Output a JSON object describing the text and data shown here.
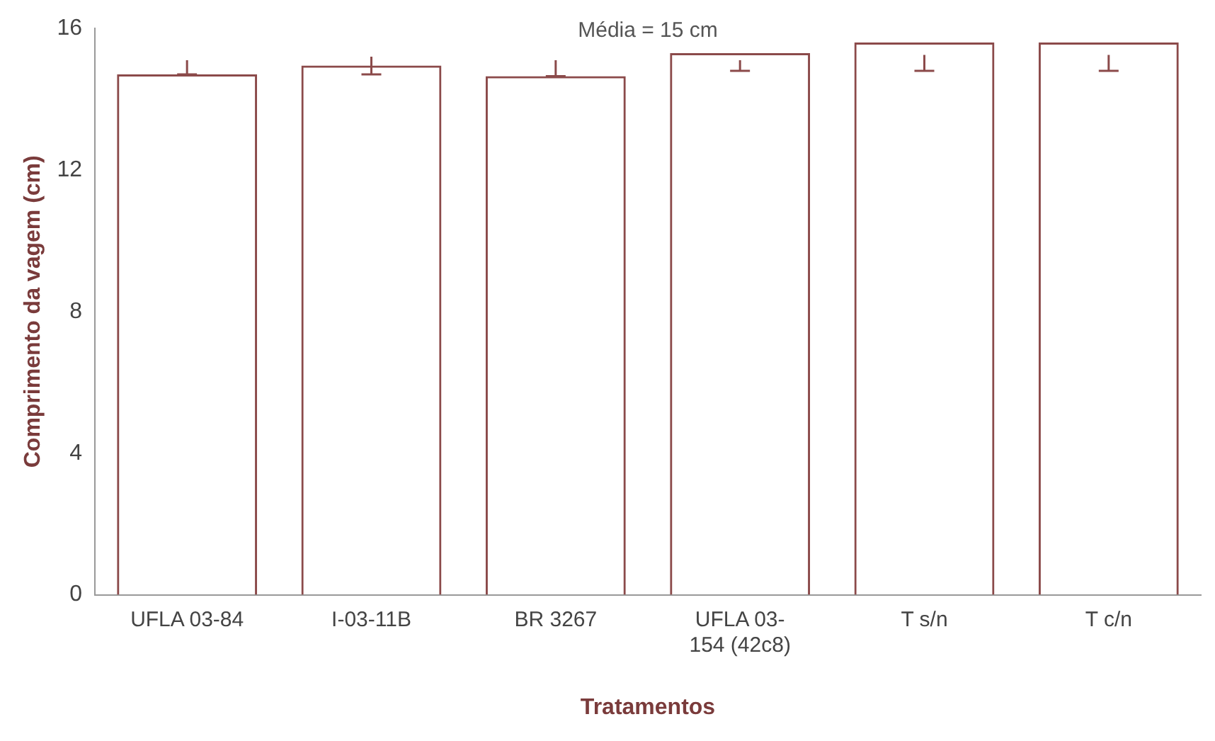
{
  "chart_data": {
    "type": "bar",
    "xlabel": "Tratamentos",
    "ylabel": "Comprimento da vagem (cm)",
    "categories": [
      "UFLA 03-84",
      "I-03-11B",
      "BR 3267",
      "UFLA 03-154 (42c8)",
      "T s/n",
      "T c/n"
    ],
    "values": [
      14.7,
      14.95,
      14.65,
      15.3,
      15.6,
      15.6
    ],
    "errors": [
      [
        14.7,
        15.1
      ],
      [
        14.7,
        15.2
      ],
      [
        14.65,
        15.1
      ],
      [
        14.8,
        15.1
      ],
      [
        14.8,
        15.25
      ],
      [
        14.8,
        15.25
      ]
    ],
    "color": "#8b4a4a",
    "ylim": [
      0,
      16
    ],
    "yticks": [
      0,
      4,
      8,
      12,
      16
    ],
    "grid": false,
    "legend": false,
    "annotations": [
      "Média = 15 cm"
    ]
  }
}
